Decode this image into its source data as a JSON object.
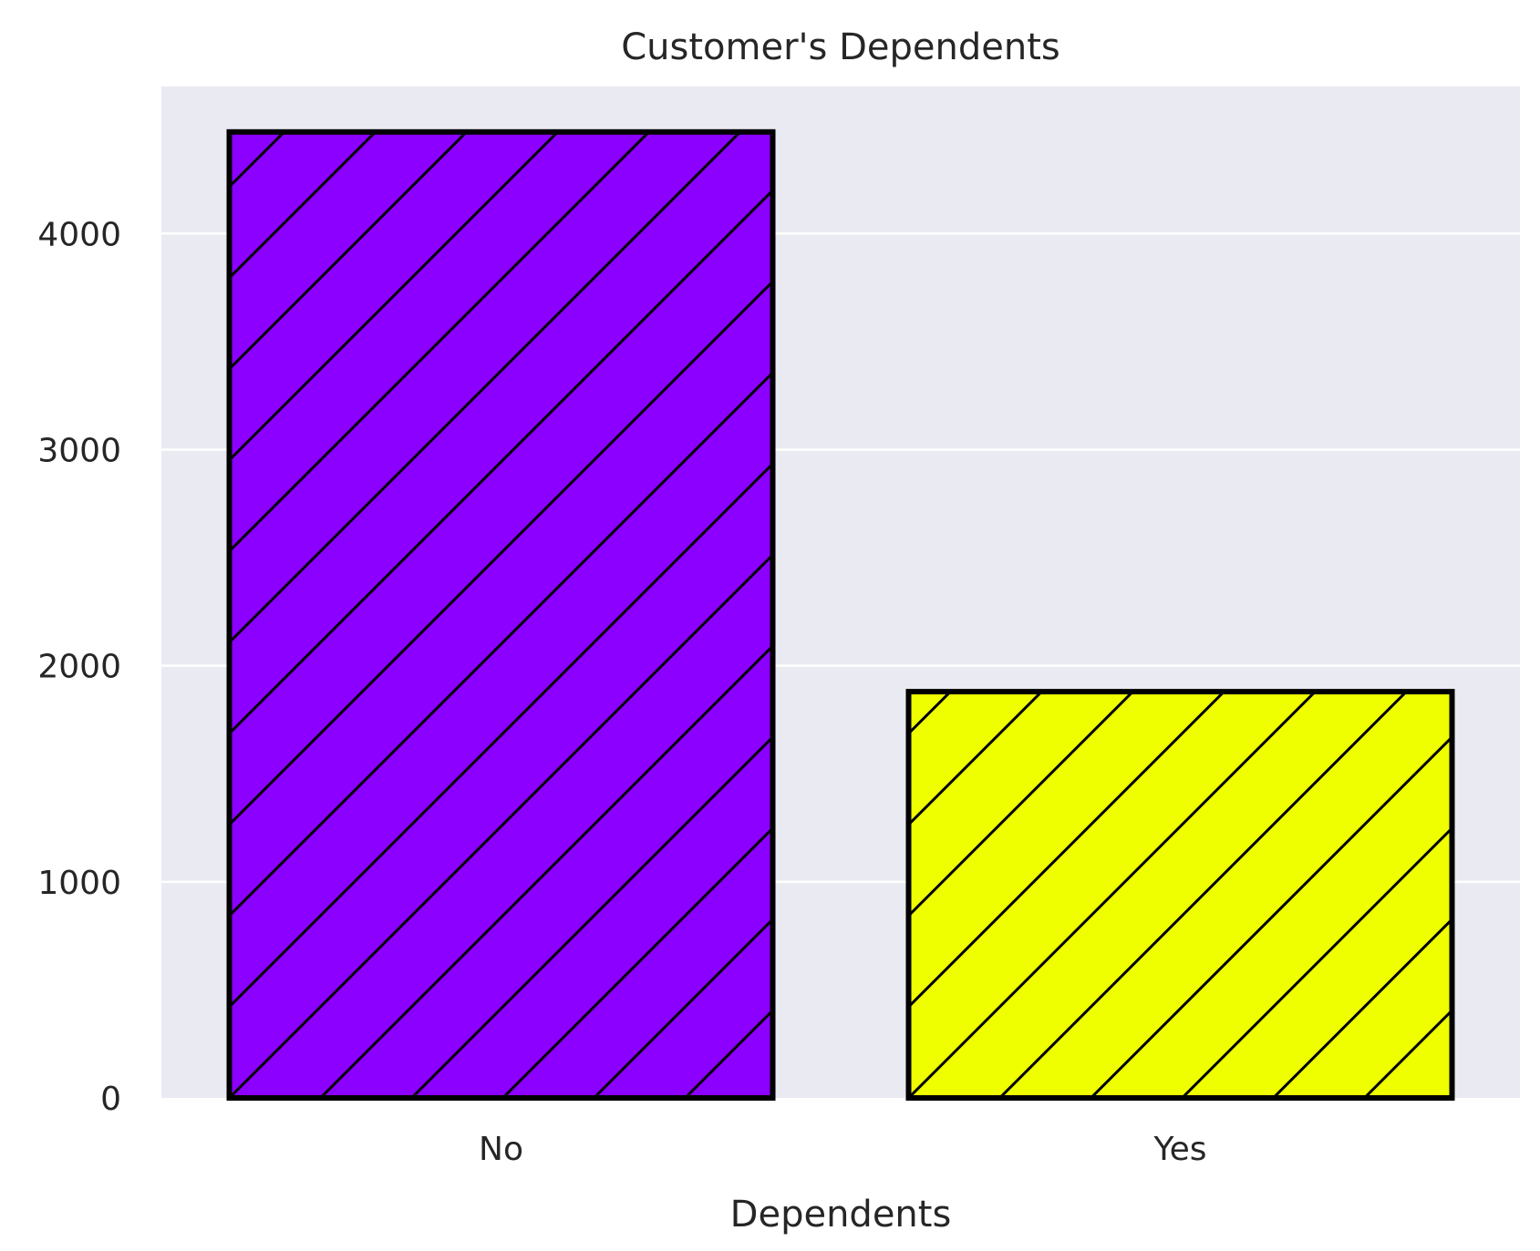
{
  "chart_data": {
    "type": "bar",
    "title": "Customer's Dependents",
    "xlabel": "Dependents",
    "ylabel": "",
    "categories": [
      "No",
      "Yes"
    ],
    "values": [
      4470,
      1880
    ],
    "ylim": [
      0,
      4680
    ],
    "yticks": [
      0,
      1000,
      2000,
      3000,
      4000
    ],
    "ytick_labels": [
      "0",
      "1000",
      "2000",
      "3000",
      "4000"
    ],
    "grid": "horizontal",
    "legend": "none",
    "bar_colors": [
      "#8b00ff",
      "#f0ff00"
    ],
    "bar_edge_color": "#000000",
    "bar_hatch": "diagonal",
    "plot_background": "#eaeaf2",
    "grid_color": "#ffffff"
  }
}
